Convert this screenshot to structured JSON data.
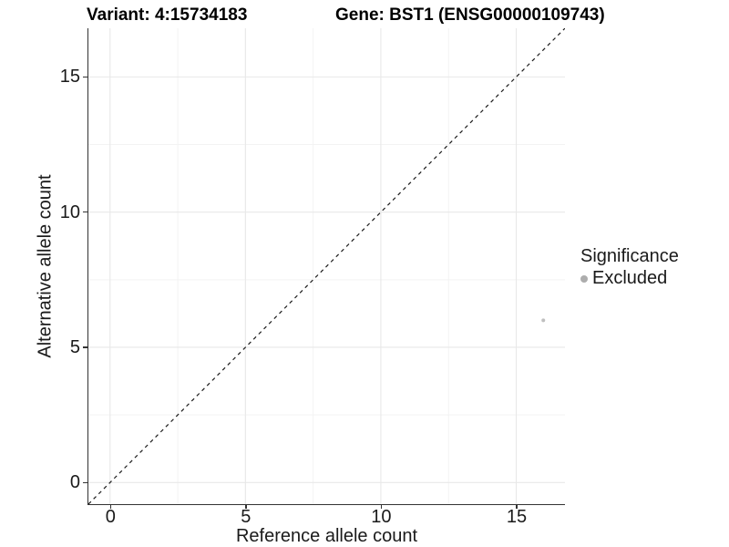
{
  "header": {
    "variant_title": "Variant: 4:15734183",
    "gene_title": "Gene: BST1 (ENSG00000109743)"
  },
  "axes": {
    "x": {
      "label": "Reference allele count",
      "tick_labels": [
        "0",
        "5",
        "10",
        "15"
      ]
    },
    "y": {
      "label": "Alternative allele count",
      "tick_labels": [
        "0",
        "5",
        "10",
        "15"
      ]
    }
  },
  "legend": {
    "title": "Significance",
    "items": [
      {
        "label": "Excluded",
        "color": "#adadad"
      }
    ]
  },
  "colors": {
    "grid_major": "#e8e8e8",
    "grid_minor": "#f3f3f3",
    "axis_line": "#333333",
    "reference_line": "#1a1a1a",
    "point": "#bfbfbf"
  },
  "chart_data": {
    "type": "scatter",
    "title": "Variant: 4:15734183 | Gene: BST1 (ENSG00000109743)",
    "xlabel": "Reference allele count",
    "ylabel": "Alternative allele count",
    "xlim": [
      -0.8,
      16.8
    ],
    "ylim": [
      -0.8,
      16.8
    ],
    "x_ticks": [
      0,
      5,
      10,
      15
    ],
    "y_ticks": [
      0,
      5,
      10,
      15
    ],
    "x_minor_ticks": [
      2.5,
      7.5,
      12.5
    ],
    "y_minor_ticks": [
      2.5,
      7.5,
      12.5
    ],
    "grid": true,
    "legend_position": "right",
    "reference_line": {
      "slope": 1,
      "intercept": 0,
      "style": "dashed"
    },
    "series": [
      {
        "name": "Excluded",
        "color": "#bfbfbf",
        "point_radius": 2,
        "points": [
          {
            "x": 16,
            "y": 6
          }
        ]
      }
    ]
  }
}
